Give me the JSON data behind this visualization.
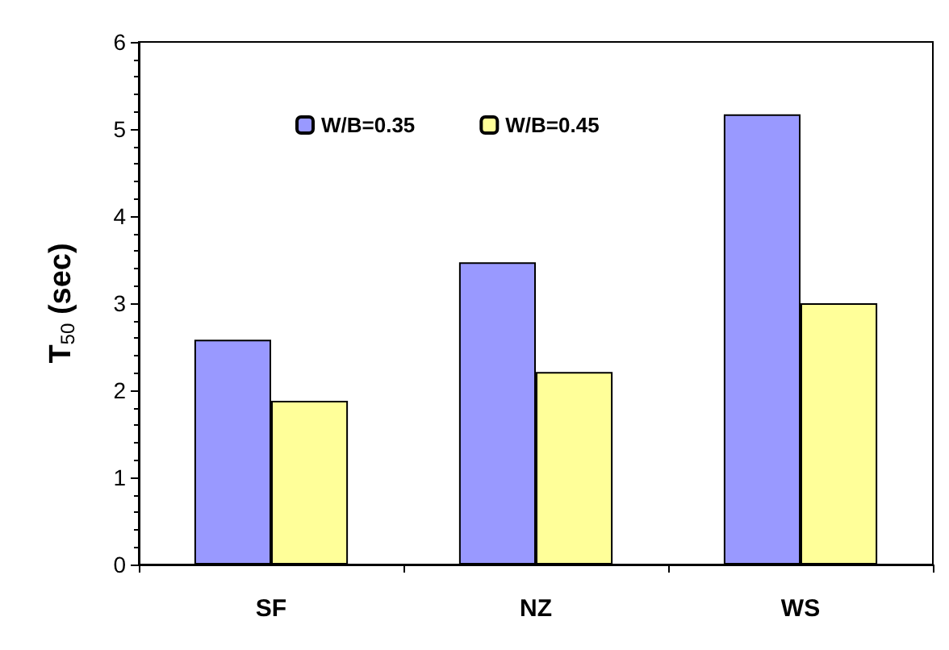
{
  "chart_data": {
    "type": "bar",
    "ylabel": "T$_{50}$ (sec)",
    "categories": [
      "SF",
      "NZ",
      "WS"
    ],
    "series": [
      {
        "name": "W/B=0.35",
        "color": "#9999ff",
        "values": [
          2.58,
          3.47,
          5.17
        ]
      },
      {
        "name": "W/B=0.45",
        "color": "#ffff99",
        "values": [
          1.88,
          2.21,
          3.0
        ]
      }
    ],
    "ylim": [
      0,
      6
    ],
    "yticks": [
      0,
      1,
      2,
      3,
      4,
      5,
      6
    ],
    "grid": false,
    "legend": "top"
  }
}
